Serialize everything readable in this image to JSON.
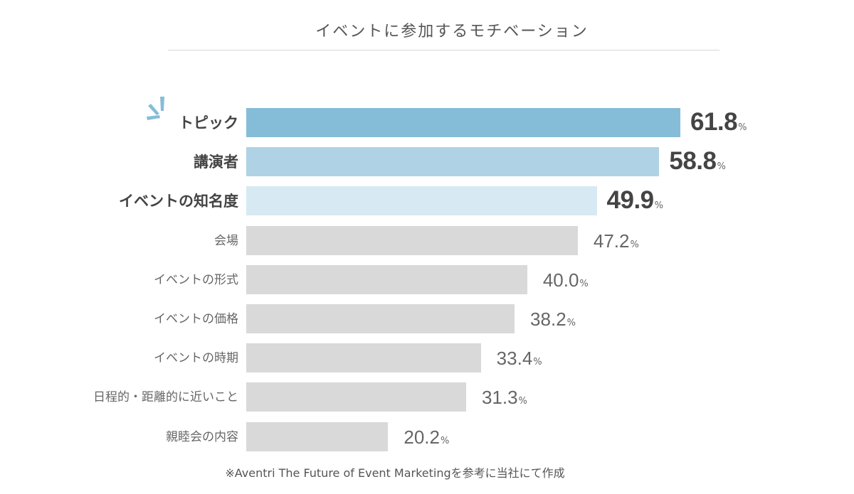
{
  "title": "イベントに参加するモチベーション",
  "source": "※Aventri The Future of Event Marketingを参考に当社にて作成",
  "percent_symbol": "%",
  "colors": {
    "bar_highlight_1": "#85bdd8",
    "bar_highlight_2": "#afd3e4",
    "bar_highlight_3": "#d7e9f2",
    "bar_default": "#d9d9d9",
    "burst": "#85bdd8"
  },
  "icons": {
    "highlight_burst": "sparkle-burst-icon"
  },
  "chart_data": {
    "type": "bar",
    "orientation": "horizontal",
    "title": "イベントに参加するモチベーション",
    "categories": [
      "トピック",
      "講演者",
      "イベントの知名度",
      "会場",
      "イベントの形式",
      "イベントの価格",
      "イベントの時期",
      "日程的・距離的に近いこと",
      "親睦会の内容"
    ],
    "values": [
      61.8,
      58.8,
      49.9,
      47.2,
      40.0,
      38.2,
      33.4,
      31.3,
      20.2
    ],
    "value_labels": [
      "61.8",
      "58.8",
      "49.9",
      "47.2",
      "40.0",
      "38.2",
      "33.4",
      "31.3",
      "20.2"
    ],
    "unit": "%",
    "highlighted": [
      true,
      true,
      true,
      false,
      false,
      false,
      false,
      false,
      false
    ],
    "xlim": [
      0,
      61.8
    ],
    "grid": false,
    "legend": "none"
  }
}
